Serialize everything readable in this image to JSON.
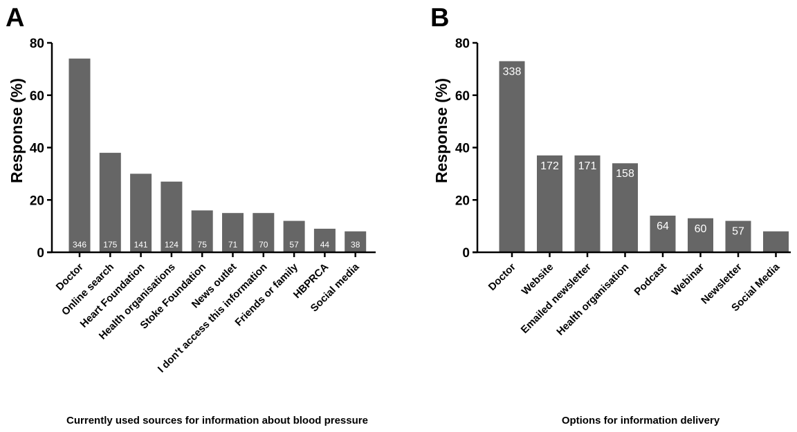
{
  "chart_data": [
    {
      "panel": "A",
      "type": "bar",
      "categories": [
        "Doctor",
        "Online search",
        "Heart Foundation",
        "Health organisations",
        "Stoke Foundation",
        "News outlet",
        "I don't access this information",
        "Friends or family",
        "HBPRCA",
        "Social media"
      ],
      "values": [
        74,
        38,
        30,
        27,
        16,
        15,
        15,
        12,
        9,
        8
      ],
      "data_labels": [
        "346",
        "175",
        "141",
        "124",
        "75",
        "71",
        "70",
        "57",
        "44",
        "38"
      ],
      "xlabel": "Currently used sources for information about blood pressure",
      "ylabel": "Response (%)",
      "yticks": [
        "0",
        "20",
        "40",
        "60",
        "80"
      ],
      "ylim": [
        0,
        80
      ],
      "bar_color": "#666666",
      "label_position": "bottom"
    },
    {
      "panel": "B",
      "type": "bar",
      "categories": [
        "Doctor",
        "Website",
        "Emailed newsletter",
        "Health organisation",
        "Podcast",
        "Webinar",
        "Newsletter",
        "Social Media"
      ],
      "values": [
        73,
        37,
        37,
        34,
        14,
        13,
        12,
        8
      ],
      "data_labels": [
        "338",
        "172",
        "171",
        "158",
        "64",
        "60",
        "57",
        ""
      ],
      "xlabel": "Options for information delivery",
      "ylabel": "Response (%)",
      "yticks": [
        "0",
        "20",
        "40",
        "60",
        "80"
      ],
      "ylim": [
        0,
        80
      ],
      "bar_color": "#666666",
      "label_position": "top"
    }
  ]
}
